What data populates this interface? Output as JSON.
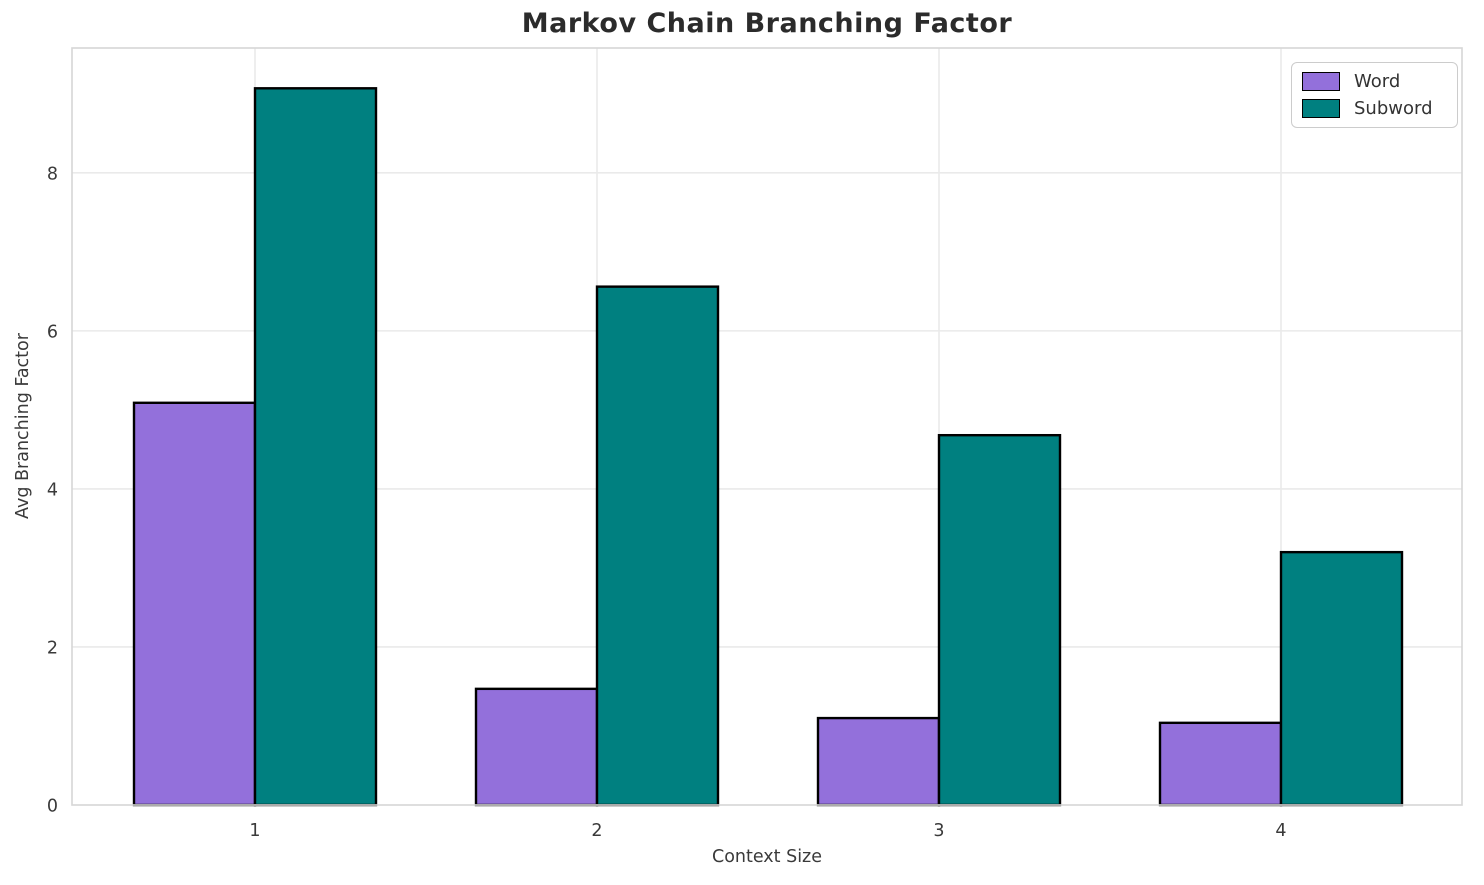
{
  "chart_data": {
    "type": "bar",
    "title": "Markov Chain Branching Factor",
    "xlabel": "Context Size",
    "ylabel": "Avg Branching Factor",
    "categories": [
      "1",
      "2",
      "3",
      "4"
    ],
    "series": [
      {
        "name": "Word",
        "color": "#9370DB",
        "values": [
          5.09,
          1.47,
          1.1,
          1.04
        ]
      },
      {
        "name": "Subword",
        "color": "#008080",
        "values": [
          9.07,
          6.56,
          4.68,
          3.2
        ]
      }
    ],
    "ylim": [
      0,
      9.58
    ],
    "yticks": [
      0,
      2,
      4,
      6,
      8
    ],
    "grid": true,
    "legend_position": "upper right",
    "bar_edge_color": "#000000",
    "grid_color": "#eaeaea",
    "spine_color": "#d6d6d6",
    "tick_label_color": "#3a3a3a",
    "title_color": "#2b2b2b"
  }
}
